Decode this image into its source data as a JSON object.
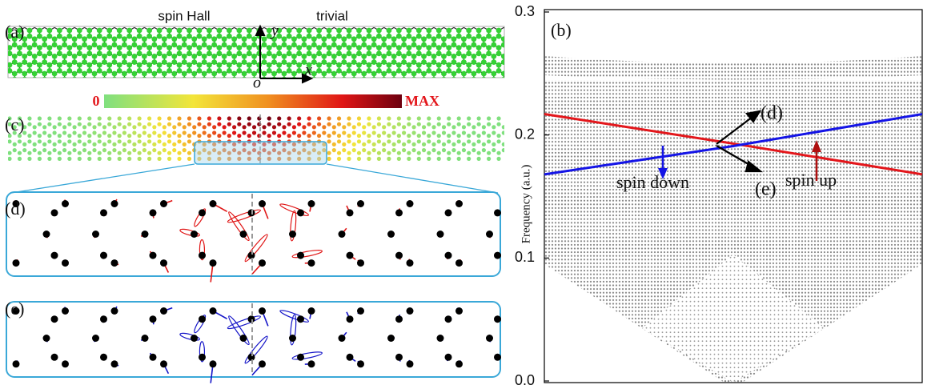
{
  "chart_data": {
    "type": "line",
    "label": "(b)",
    "ylabel": "Frequency (a.u.)",
    "ylim": [
      0,
      0.3
    ],
    "yticks": [
      {
        "value": 0,
        "label": "0.0"
      },
      0.1,
      0.2,
      0.3
    ],
    "series": [
      {
        "name": "spin up",
        "color": "#e3161b",
        "values": [
          0.217,
          0.193,
          0.168
        ]
      },
      {
        "name": "spin down",
        "color": "#1414e6",
        "values": [
          0.168,
          0.191,
          0.217
        ]
      }
    ],
    "annotations": [
      "(d)",
      "(e)"
    ]
  },
  "panels": {
    "a": {
      "label": "(a)",
      "left": "spin Hall",
      "right": "trivial",
      "axis_y": "y",
      "axis_x": "x",
      "origin": "o"
    },
    "colorbar": {
      "min": "0",
      "max": "MAX"
    },
    "c": {
      "label": "(c)"
    },
    "d": {
      "label": "(d)"
    },
    "e": {
      "label": "(e)"
    }
  }
}
